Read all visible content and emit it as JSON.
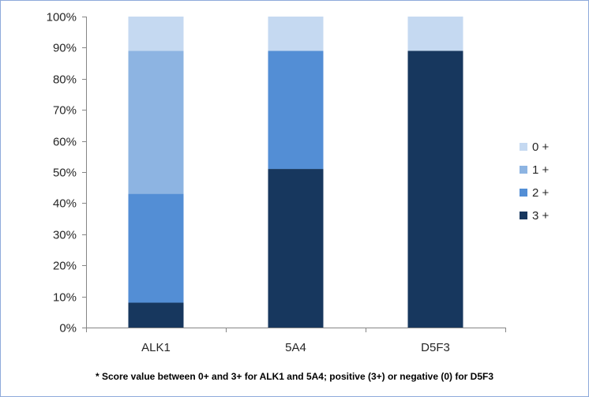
{
  "chart_data": {
    "type": "bar",
    "stacked": true,
    "categories": [
      "ALK1",
      "5A4",
      "D5F3"
    ],
    "series": [
      {
        "name": "3 +",
        "values": [
          8,
          51,
          89
        ],
        "color": "#17375e"
      },
      {
        "name": "2 +",
        "values": [
          35,
          38,
          0
        ],
        "color": "#538ed5"
      },
      {
        "name": "1 +",
        "values": [
          46,
          0,
          0
        ],
        "color": "#8db4e2"
      },
      {
        "name": "0 +",
        "values": [
          11,
          11,
          11
        ],
        "color": "#c5d9f1"
      }
    ],
    "legend_order": [
      "0 +",
      "1 +",
      "2 +",
      "3 +"
    ],
    "legend_position": "right",
    "y_ticks": [
      "0%",
      "10%",
      "20%",
      "30%",
      "40%",
      "50%",
      "60%",
      "70%",
      "80%",
      "90%",
      "100%"
    ],
    "ylim": [
      0,
      100
    ],
    "grid": false,
    "footnote": "* Score value between 0+ and 3+ for ALK1 and 5A4; positive (3+) or negative (0) for D5F3"
  }
}
